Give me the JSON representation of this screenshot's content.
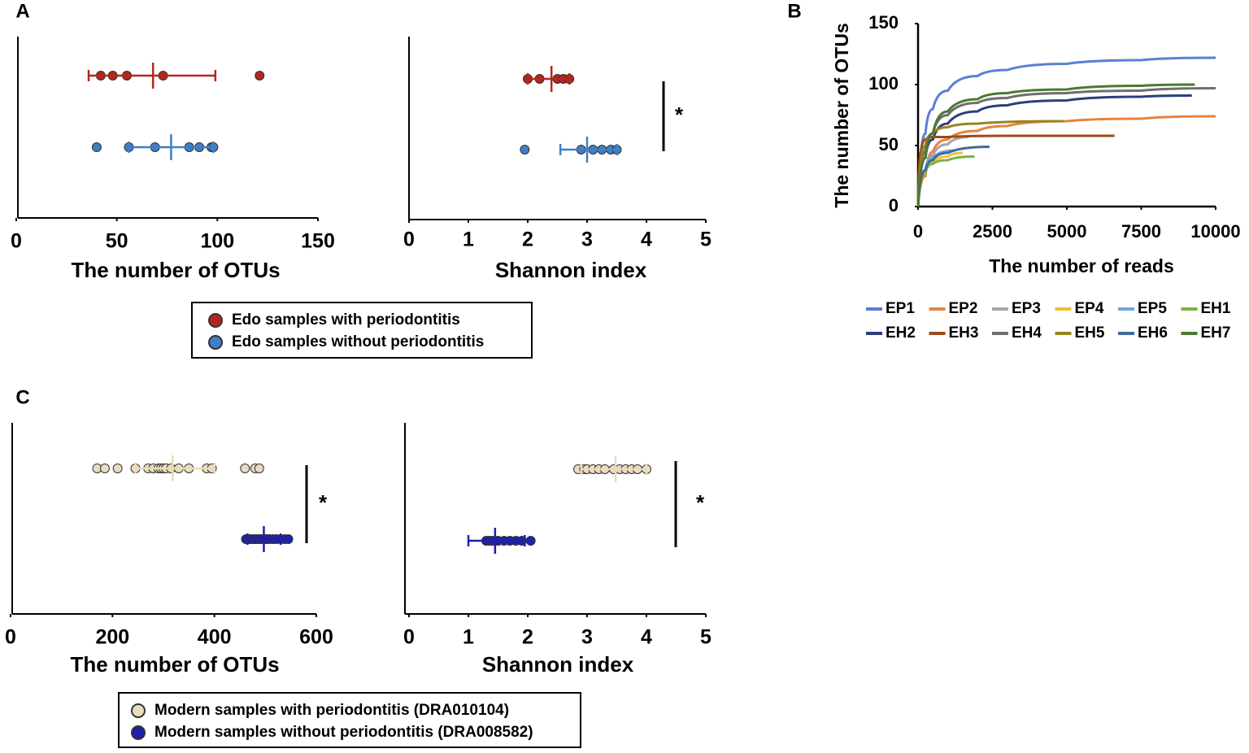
{
  "panel_labels": [
    "A",
    "B",
    "C"
  ],
  "chart_data": [
    {
      "type": "dot",
      "xlabel": "The number of OTUs",
      "xlim": [
        0,
        150
      ],
      "xticks": [
        0,
        50,
        100,
        150
      ],
      "series": [
        {
          "name": "Edo samples with periodontitis",
          "color": "#b3261e",
          "values": [
            42,
            48,
            55,
            73,
            121
          ],
          "mean": 68,
          "ci": [
            36,
            99
          ]
        },
        {
          "name": "Edo samples without periodontitis",
          "color": "#3f7fc4",
          "values": [
            40,
            56,
            69,
            86,
            91,
            97,
            98
          ],
          "mean": 77,
          "ci": [
            56,
            98
          ]
        }
      ]
    },
    {
      "type": "dot",
      "xlabel": "Shannon index",
      "xlim": [
        0,
        5
      ],
      "xticks": [
        0,
        1,
        2,
        3,
        4,
        5
      ],
      "annotation": "*",
      "series": [
        {
          "color": "#b3261e",
          "values": [
            2.0,
            2.2,
            2.5,
            2.6,
            2.7
          ],
          "mean": 2.4,
          "ci": [
            2.0,
            2.7
          ]
        },
        {
          "color": "#3f7fc4",
          "values": [
            1.95,
            2.9,
            3.1,
            3.25,
            3.4,
            3.5
          ],
          "mean": 3.0,
          "ci": [
            2.55,
            3.5
          ]
        }
      ]
    },
    {
      "type": "line",
      "xlabel": "The number of reads",
      "ylabel": "The number of OTUs",
      "xlim": [
        0,
        10000
      ],
      "xticks": [
        0,
        2500,
        5000,
        7500,
        10000
      ],
      "ylim": [
        0,
        150
      ],
      "yticks": [
        0,
        50,
        100,
        150
      ],
      "series": [
        {
          "name": "EP1",
          "color": "#5b7fd6",
          "x": [
            0,
            250,
            500,
            1000,
            2000,
            3000,
            5000,
            7500,
            10000
          ],
          "values": [
            0,
            60,
            80,
            95,
            107,
            112,
            117,
            120,
            122
          ]
        },
        {
          "name": "EP2",
          "color": "#e6843c",
          "x": [
            0,
            250,
            500,
            1000,
            2000,
            3000,
            5000,
            7500,
            10000
          ],
          "values": [
            0,
            25,
            45,
            55,
            62,
            66,
            70,
            72,
            74
          ]
        },
        {
          "name": "EP3",
          "color": "#a6a6a6",
          "x": [
            0,
            250,
            500,
            1000,
            1700
          ],
          "values": [
            0,
            30,
            42,
            51,
            57
          ]
        },
        {
          "name": "EP4",
          "color": "#f4c02c",
          "x": [
            0,
            250,
            500,
            1000,
            1500
          ],
          "values": [
            0,
            28,
            36,
            41,
            44
          ]
        },
        {
          "name": "EP5",
          "color": "#6fa8dc",
          "x": [
            0,
            250,
            500,
            1200
          ],
          "values": [
            0,
            30,
            40,
            46
          ]
        },
        {
          "name": "EH1",
          "color": "#7cb342",
          "x": [
            0,
            250,
            500,
            1000,
            1900
          ],
          "values": [
            0,
            28,
            35,
            38,
            41
          ]
        },
        {
          "name": "EH2",
          "color": "#2a3f7a",
          "x": [
            0,
            250,
            500,
            1000,
            2000,
            3000,
            5000,
            7500,
            9200
          ],
          "values": [
            0,
            40,
            55,
            68,
            78,
            83,
            87,
            90,
            91
          ]
        },
        {
          "name": "EH3",
          "color": "#9c4a1a",
          "x": [
            0,
            100,
            250,
            500,
            1000,
            3000,
            6600
          ],
          "values": [
            0,
            45,
            55,
            57,
            57,
            58,
            58
          ]
        },
        {
          "name": "EH4",
          "color": "#6e6e6e",
          "x": [
            0,
            250,
            500,
            1000,
            2000,
            3000,
            5000,
            7500,
            10000
          ],
          "values": [
            0,
            45,
            60,
            75,
            85,
            89,
            93,
            95,
            97
          ]
        },
        {
          "name": "EH5",
          "color": "#9a8420",
          "x": [
            0,
            250,
            500,
            1000,
            2000,
            4900
          ],
          "values": [
            0,
            50,
            60,
            65,
            68,
            70
          ]
        },
        {
          "name": "EH6",
          "color": "#3d6a9e",
          "x": [
            0,
            250,
            500,
            1000,
            2400
          ],
          "values": [
            0,
            30,
            38,
            44,
            49
          ]
        },
        {
          "name": "EH7",
          "color": "#4a7a32",
          "x": [
            0,
            250,
            500,
            1000,
            2000,
            3000,
            5000,
            7500,
            9300
          ],
          "values": [
            0,
            40,
            60,
            78,
            88,
            93,
            96,
            99,
            100
          ]
        }
      ]
    },
    {
      "type": "dot",
      "xlabel": "The number of OTUs",
      "xlim": [
        0,
        600
      ],
      "xticks": [
        0,
        200,
        400,
        600
      ],
      "annotation": "*",
      "series": [
        {
          "name": "Modern samples with periodontitis (DRA010104)",
          "color": "#e8dcc0",
          "errcolor": "#eadcb8",
          "values": [
            170,
            185,
            210,
            245,
            270,
            280,
            290,
            295,
            300,
            305,
            315,
            330,
            350,
            385,
            395,
            460,
            480,
            488
          ],
          "mean": 318,
          "ci": [
            245,
            400
          ]
        },
        {
          "name": "Modern samples without periodontitis (DRA008582)",
          "color": "#1f1fb0",
          "errcolor": "#1f1fb0",
          "values": [
            462,
            468,
            472,
            478,
            482,
            488,
            492,
            498,
            503,
            508,
            515,
            522,
            530,
            538,
            545
          ],
          "mean": 497,
          "ci": [
            465,
            530
          ]
        }
      ]
    },
    {
      "type": "dot",
      "xlabel": "Shannon index",
      "xlim": [
        0,
        5
      ],
      "xticks": [
        0,
        1,
        2,
        3,
        4,
        5
      ],
      "annotation": "*",
      "series": [
        {
          "color": "#e8dcc0",
          "errcolor": "#eadcb8",
          "values": [
            2.85,
            2.95,
            3.0,
            3.1,
            3.2,
            3.3,
            3.45,
            3.55,
            3.65,
            3.75,
            3.85,
            4.0
          ],
          "mean": 3.48,
          "ci": [
            2.9,
            4.0
          ]
        },
        {
          "color": "#1f1fb0",
          "errcolor": "#1f1fb0",
          "values": [
            1.3,
            1.35,
            1.4,
            1.45,
            1.5,
            1.6,
            1.7,
            1.8,
            1.9,
            2.05
          ],
          "mean": 1.45,
          "ci": [
            1.0,
            1.95
          ]
        }
      ]
    }
  ]
}
